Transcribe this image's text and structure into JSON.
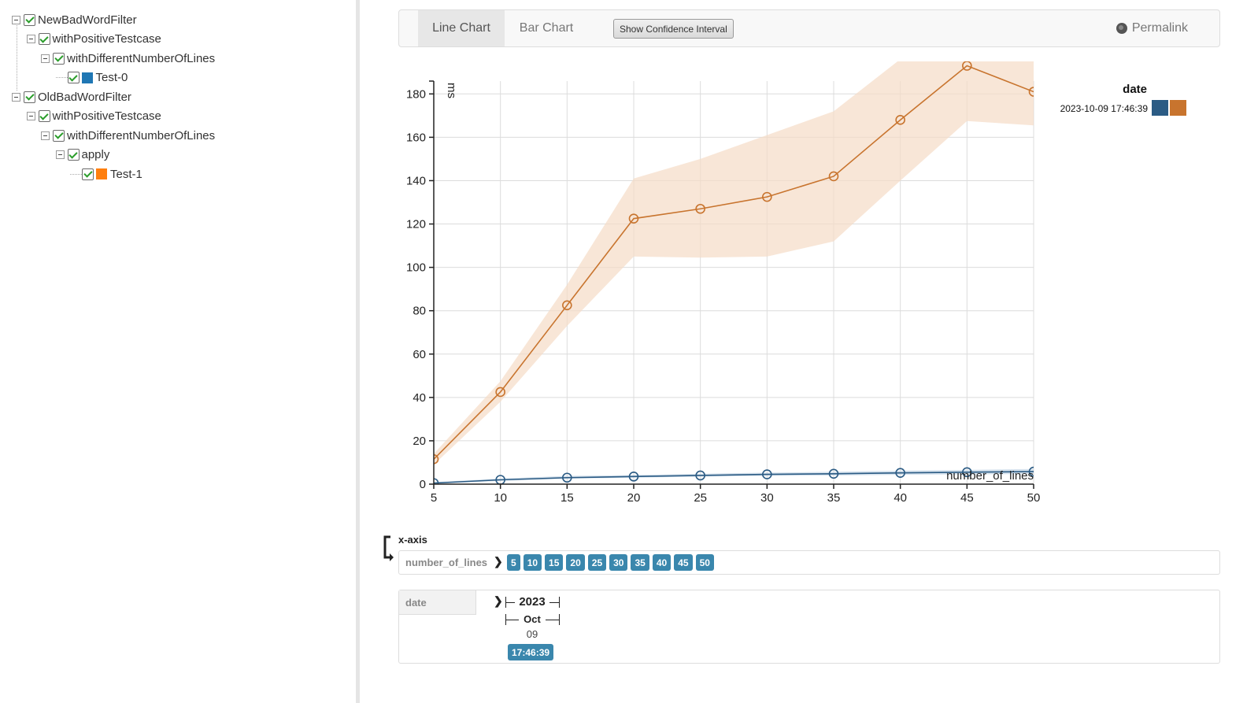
{
  "tree": {
    "items": [
      {
        "label": "NewBadWordFilter",
        "level": 0,
        "toggle": true,
        "swatch": ""
      },
      {
        "label": "withPositiveTestcase",
        "level": 1,
        "toggle": true,
        "swatch": ""
      },
      {
        "label": "withDifferentNumberOfLines",
        "level": 2,
        "toggle": true,
        "swatch": ""
      },
      {
        "label": "Test-0",
        "level": 3,
        "toggle": false,
        "swatch": "#1f77b4"
      },
      {
        "label": "OldBadWordFilter",
        "level": 0,
        "toggle": true,
        "swatch": ""
      },
      {
        "label": "withPositiveTestcase",
        "level": 1,
        "toggle": true,
        "swatch": ""
      },
      {
        "label": "withDifferentNumberOfLines",
        "level": 2,
        "toggle": true,
        "swatch": ""
      },
      {
        "label": "apply",
        "level": 3,
        "toggle": true,
        "swatch": ""
      },
      {
        "label": "Test-1",
        "level": 4,
        "toggle": false,
        "swatch": "#ff7f0e"
      }
    ]
  },
  "toolbar": {
    "tab_line": "Line Chart",
    "tab_bar": "Bar Chart",
    "ci_button": "Show Confidence Interval",
    "permalink": "Permalink"
  },
  "chart_data": {
    "type": "line",
    "xlabel": "number_of_lines",
    "ylabel": "ms",
    "x_ticks": [
      5,
      10,
      15,
      20,
      25,
      30,
      35,
      40,
      45,
      50
    ],
    "y_ticks": [
      0,
      20,
      40,
      60,
      80,
      100,
      120,
      140,
      160,
      180
    ],
    "xlim": [
      5,
      50
    ],
    "ylim": [
      0,
      195
    ],
    "grid": true,
    "legend": {
      "title": "date",
      "entry": "2023-10-09 17:46:39",
      "position": "top-right"
    },
    "series": [
      {
        "color": "#2b5b84",
        "band_color": "#c4d6e6",
        "x": [
          5,
          10,
          15,
          20,
          25,
          30,
          35,
          40,
          45,
          50
        ],
        "y": [
          0.5,
          2,
          3,
          3.5,
          4,
          4.5,
          4.8,
          5.2,
          5.5,
          5.8
        ],
        "lower": [
          0.2,
          1.5,
          2.5,
          3,
          3.5,
          3.8,
          4,
          4.3,
          4.5,
          4.7
        ],
        "upper": [
          0.9,
          2.6,
          3.8,
          4.2,
          4.8,
          5.3,
          5.7,
          6.2,
          6.6,
          7
        ]
      },
      {
        "color": "#c8742e",
        "band_color": "#f5dcc6",
        "x": [
          5,
          10,
          15,
          20,
          25,
          30,
          35,
          40,
          45,
          50
        ],
        "y": [
          11.5,
          42.5,
          82.5,
          122.5,
          127,
          132.5,
          142,
          168,
          193,
          181
        ],
        "lower": [
          9,
          38,
          73,
          105,
          104.5,
          105,
          112,
          140,
          167.5,
          165.5
        ],
        "upper": [
          14,
          47.5,
          92,
          141,
          150,
          161,
          172,
          196,
          215,
          198
        ]
      }
    ]
  },
  "xaxis": {
    "label": "x-axis",
    "param_name": "number_of_lines",
    "values": [
      "5",
      "10",
      "15",
      "20",
      "25",
      "30",
      "35",
      "40",
      "45",
      "50"
    ],
    "date_name": "date",
    "year": "2023",
    "month": "Oct",
    "day": "09",
    "time": "17:46:39"
  }
}
